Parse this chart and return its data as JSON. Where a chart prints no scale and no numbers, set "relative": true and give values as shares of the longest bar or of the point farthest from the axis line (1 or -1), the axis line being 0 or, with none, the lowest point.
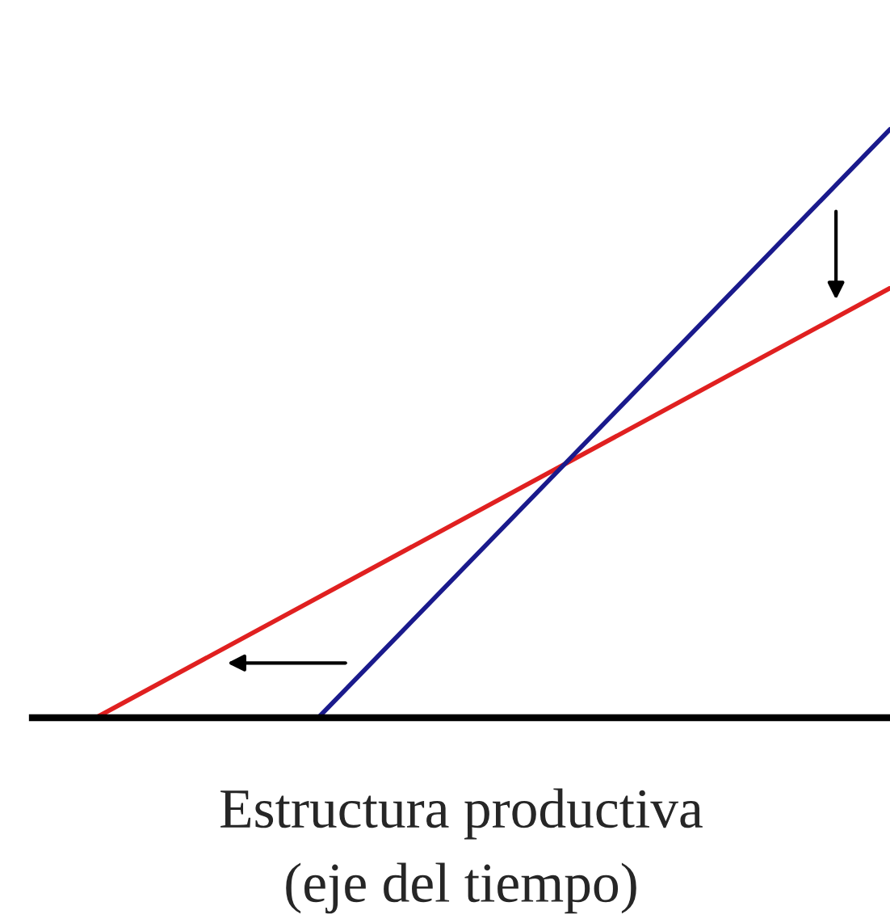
{
  "chart_data": {
    "type": "line",
    "relative": true,
    "xlabel": "Estructura productiva\n(eje del tiempo)",
    "categories": [
      null,
      null,
      null,
      null,
      null,
      null,
      null,
      null,
      null,
      null,
      null,
      null,
      null,
      null,
      null,
      null,
      null,
      null,
      null,
      null,
      null,
      null,
      null,
      null,
      null,
      null
    ],
    "series": [
      {
        "color": "#e02020",
        "values": [
          0,
          null,
          null,
          null,
          null,
          null,
          null,
          null,
          null,
          null,
          null,
          null,
          null,
          null,
          null,
          null,
          null,
          null,
          null,
          null,
          null,
          null,
          null,
          null,
          null,
          0.73
        ]
      },
      {
        "color": "#1a1a8c",
        "values": [
          null,
          null,
          null,
          null,
          null,
          null,
          null,
          0,
          null,
          null,
          null,
          null,
          null,
          null,
          null,
          null,
          null,
          null,
          null,
          null,
          null,
          null,
          null,
          null,
          null,
          1
        ]
      }
    ]
  }
}
